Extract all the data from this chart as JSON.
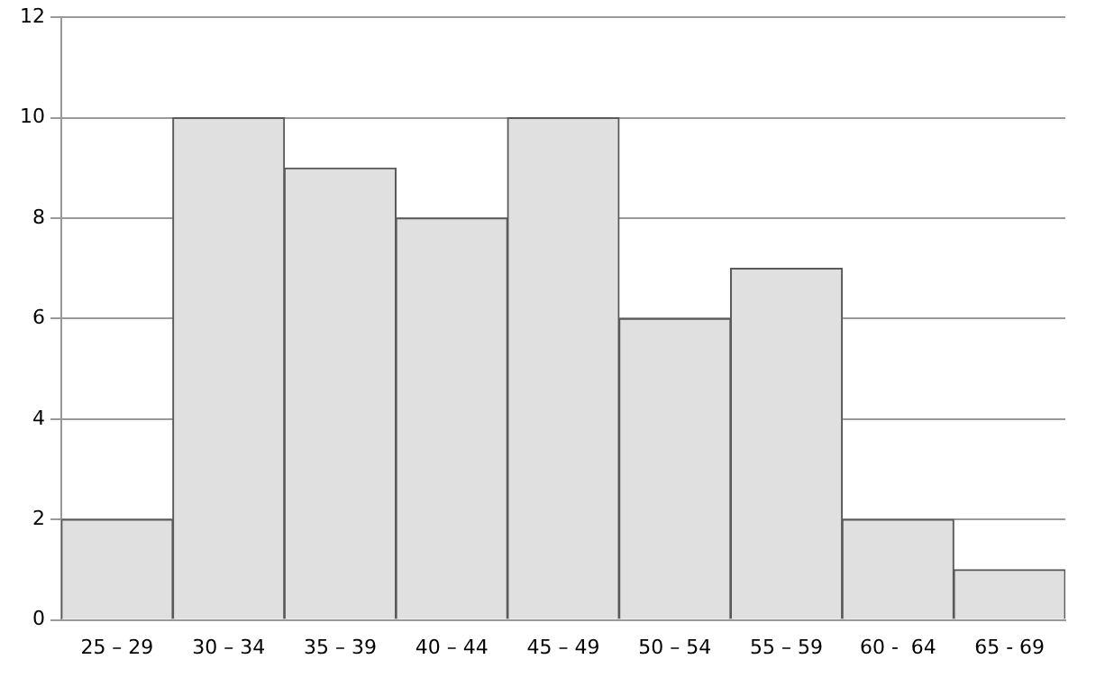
{
  "chart_data": {
    "type": "bar",
    "categories": [
      "25 – 29",
      "30 – 34",
      "35 – 39",
      "40 – 44",
      "45 – 49",
      "50 – 54",
      "55 – 59",
      "60 -  64",
      "65 - 69"
    ],
    "values": [
      2,
      10,
      9,
      8,
      10,
      6,
      7,
      2,
      1
    ],
    "color": "#e0e0e0",
    "ylim": [
      0,
      12
    ],
    "yticks": [
      0,
      2,
      4,
      6,
      8,
      10,
      12
    ],
    "grid": "y",
    "legend": false
  }
}
